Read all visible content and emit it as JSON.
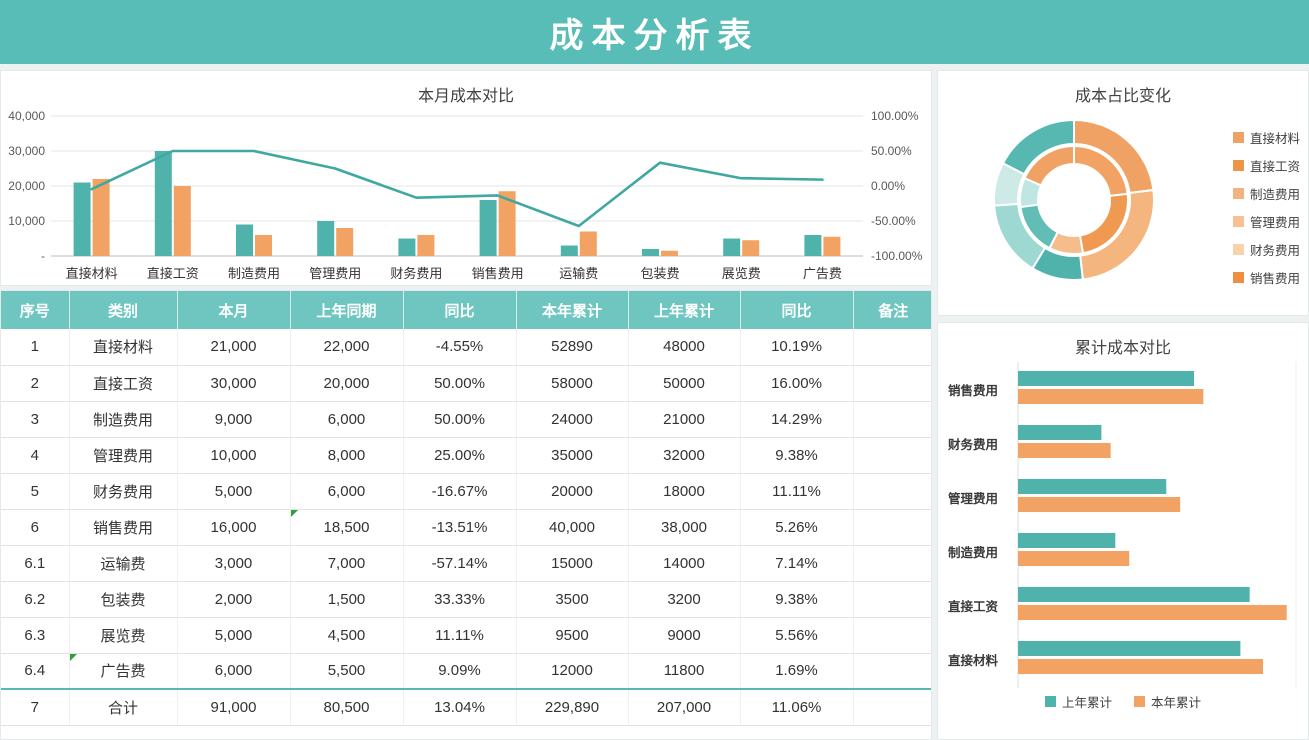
{
  "page": {
    "title": "成本分析表"
  },
  "colors": {
    "banner": "#58bdb6",
    "teal": "#4fb3ac",
    "orange": "#f2a262",
    "line": "#3fa8a1",
    "table_header": "#6fc6c0"
  },
  "chart_data": [
    {
      "type": "combo",
      "title": "本月成本对比",
      "categories": [
        "直接材料",
        "直接工资",
        "制造费用",
        "管理费用",
        "财务费用",
        "销售费用",
        "运输费",
        "包装费",
        "展览费",
        "广告费"
      ],
      "series": [
        {
          "name": "本月",
          "type": "bar",
          "color": "#4fb3ac",
          "values": [
            21000,
            30000,
            9000,
            10000,
            5000,
            16000,
            3000,
            2000,
            5000,
            6000
          ]
        },
        {
          "name": "上年同期",
          "type": "bar",
          "color": "#f2a262",
          "values": [
            22000,
            20000,
            6000,
            8000,
            6000,
            18500,
            7000,
            1500,
            4500,
            5500
          ]
        },
        {
          "name": "同比",
          "type": "line",
          "axis": "right",
          "color": "#3fa8a1",
          "values": [
            -4.55,
            50,
            50,
            25,
            -16.67,
            -13.51,
            -57.14,
            33.33,
            11.11,
            9.09
          ]
        }
      ],
      "left_axis": {
        "max": 40000,
        "ticks": [
          {
            "value": 40000,
            "label": "40,000"
          },
          {
            "value": 30000,
            "label": "30,000"
          },
          {
            "value": 20000,
            "label": "20,000"
          },
          {
            "value": 10000,
            "label": "10,000"
          },
          {
            "value": 0,
            "label": "-"
          }
        ]
      },
      "right_axis": {
        "ticks": [
          {
            "value": 100,
            "label": "100.00%"
          },
          {
            "value": 50,
            "label": "50.00%"
          },
          {
            "value": 0,
            "label": "0.00%"
          },
          {
            "value": -50,
            "label": "-50.00%"
          },
          {
            "value": -100,
            "label": "-100.00%"
          }
        ]
      }
    },
    {
      "type": "donut",
      "title": "成本占比变化",
      "categories": [
        "直接材料",
        "直接工资",
        "制造费用",
        "管理费用",
        "财务费用",
        "销售费用"
      ],
      "rings": [
        {
          "name": "本年累计",
          "values": [
            52890,
            58000,
            24000,
            35000,
            20000,
            40000
          ],
          "colors": [
            "#f0a264",
            "#f5b57e",
            "#4fb3ac",
            "#9ed8d3",
            "#cdeae7",
            "#57b8b1"
          ]
        },
        {
          "name": "上年累计",
          "values": [
            48000,
            50000,
            21000,
            32000,
            18000,
            38000
          ],
          "colors": [
            "#f2a262",
            "#ef9a50",
            "#f6bd8c",
            "#62bdb6",
            "#bfe6e2",
            "#f0a264"
          ]
        }
      ],
      "legend": [
        {
          "label": "直接材料",
          "color": "#f0a264"
        },
        {
          "label": "直接工资",
          "color": "#ee9449"
        },
        {
          "label": "制造费用",
          "color": "#f4b27e"
        },
        {
          "label": "管理费用",
          "color": "#f7c193"
        },
        {
          "label": "财务费用",
          "color": "#f9d2ab"
        },
        {
          "label": "销售费用",
          "color": "#ed8f3f"
        }
      ]
    },
    {
      "type": "bar-horizontal",
      "title": "累计成本对比",
      "categories": [
        "销售费用",
        "财务费用",
        "管理费用",
        "制造费用",
        "直接工资",
        "直接材料"
      ],
      "xmax": 60000,
      "series": [
        {
          "name": "上年累计",
          "color": "#4fb3ac",
          "values": [
            38000,
            18000,
            32000,
            21000,
            50000,
            48000
          ]
        },
        {
          "name": "本年累计",
          "color": "#f2a262",
          "values": [
            40000,
            20000,
            35000,
            24000,
            58000,
            52890
          ]
        }
      ]
    }
  ],
  "table": {
    "headers": [
      "序号",
      "类别",
      "本月",
      "上年同期",
      "同比",
      "本年累计",
      "上年累计",
      "同比",
      "备注"
    ],
    "rows": [
      [
        "1",
        "直接材料",
        "21,000",
        "22,000",
        "-4.55%",
        "52890",
        "48000",
        "10.19%",
        ""
      ],
      [
        "2",
        "直接工资",
        "30,000",
        "20,000",
        "50.00%",
        "58000",
        "50000",
        "16.00%",
        ""
      ],
      [
        "3",
        "制造费用",
        "9,000",
        "6,000",
        "50.00%",
        "24000",
        "21000",
        "14.29%",
        ""
      ],
      [
        "4",
        "管理费用",
        "10,000",
        "8,000",
        "25.00%",
        "35000",
        "32000",
        "9.38%",
        ""
      ],
      [
        "5",
        "财务费用",
        "5,000",
        "6,000",
        "-16.67%",
        "20000",
        "18000",
        "11.11%",
        ""
      ],
      [
        "6",
        "销售费用",
        "16,000",
        "18,500",
        "-13.51%",
        "40,000",
        "38,000",
        "5.26%",
        ""
      ],
      [
        "6.1",
        "运输费",
        "3,000",
        "7,000",
        "-57.14%",
        "15000",
        "14000",
        "7.14%",
        ""
      ],
      [
        "6.2",
        "包装费",
        "2,000",
        "1,500",
        "33.33%",
        "3500",
        "3200",
        "9.38%",
        ""
      ],
      [
        "6.3",
        "展览费",
        "5,000",
        "4,500",
        "11.11%",
        "9500",
        "9000",
        "5.56%",
        ""
      ],
      [
        "6.4",
        "广告费",
        "6,000",
        "5,500",
        "9.09%",
        "12000",
        "11800",
        "1.69%",
        ""
      ],
      [
        "7",
        "合计",
        "91,000",
        "80,500",
        "13.04%",
        "229,890",
        "207,000",
        "11.06%",
        ""
      ]
    ],
    "error_markers": [
      {
        "row": 5,
        "col": 3
      },
      {
        "row": 9,
        "col": 1
      }
    ]
  }
}
